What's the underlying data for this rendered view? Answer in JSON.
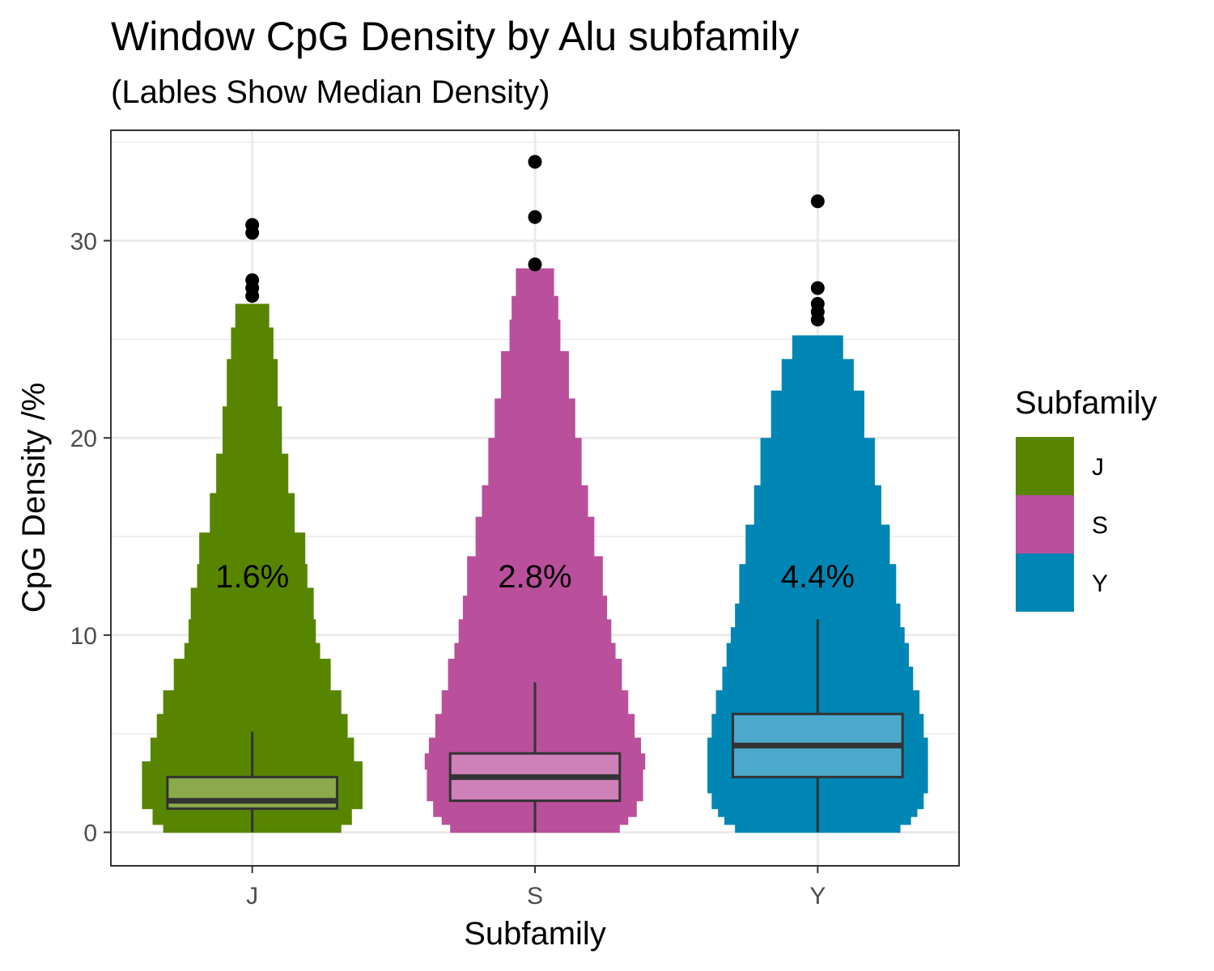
{
  "chart_data": {
    "type": "violin",
    "title": "Window CpG Density by Alu subfamily",
    "subtitle": "(Lables Show Median Density)",
    "xlabel": "Subfamily",
    "ylabel": "CpG Density /%",
    "categories": [
      "J",
      "S",
      "Y"
    ],
    "y_ticks": [
      0,
      10,
      20,
      30
    ],
    "ylim": [
      -1.7,
      35.6
    ],
    "label_y": 13,
    "legend": {
      "title": "Subfamily",
      "placement": "right",
      "items": [
        "J",
        "S",
        "Y"
      ]
    },
    "colors": {
      "J": "#578500",
      "S": "#ba4f9b",
      "Y": "#0086b4"
    },
    "box_fill_colors": {
      "J": "#8aaa4c",
      "S": "#ce80b9",
      "Y": "#4ca9cb"
    },
    "series": [
      {
        "name": "J",
        "median_label": "1.6%",
        "box": {
          "whisker_low": 0,
          "q1": 1.2,
          "median": 1.6,
          "q3": 2.8,
          "whisker_high": 5.1
        },
        "outliers": [
          27.2,
          27.6,
          28.0,
          30.4,
          30.8
        ],
        "violin_max": 26.8,
        "violin_profile": [
          [
            0,
            0.42
          ],
          [
            0.4,
            0.47
          ],
          [
            1.2,
            0.52
          ],
          [
            2.8,
            0.52
          ],
          [
            3.6,
            0.48
          ],
          [
            4.8,
            0.45
          ],
          [
            6.0,
            0.42
          ],
          [
            7.2,
            0.37
          ],
          [
            8.8,
            0.32
          ],
          [
            9.6,
            0.3
          ],
          [
            10.8,
            0.29
          ],
          [
            12.4,
            0.26
          ],
          [
            13.6,
            0.25
          ],
          [
            15.2,
            0.2
          ],
          [
            17.2,
            0.17
          ],
          [
            19.2,
            0.14
          ],
          [
            21.6,
            0.12
          ],
          [
            24.0,
            0.1
          ],
          [
            25.6,
            0.08
          ],
          [
            26.8,
            0.08
          ]
        ]
      },
      {
        "name": "S",
        "median_label": "2.8%",
        "box": {
          "whisker_low": 0,
          "q1": 1.6,
          "median": 2.8,
          "q3": 4.0,
          "whisker_high": 7.6
        },
        "outliers": [
          28.8,
          31.2,
          34.0
        ],
        "violin_max": 28.6,
        "violin_profile": [
          [
            0,
            0.4
          ],
          [
            0.4,
            0.44
          ],
          [
            0.8,
            0.48
          ],
          [
            1.6,
            0.51
          ],
          [
            3.2,
            0.52
          ],
          [
            4.0,
            0.5
          ],
          [
            4.8,
            0.47
          ],
          [
            6.0,
            0.44
          ],
          [
            7.2,
            0.41
          ],
          [
            8.8,
            0.38
          ],
          [
            9.6,
            0.36
          ],
          [
            10.8,
            0.34
          ],
          [
            12.0,
            0.32
          ],
          [
            14.0,
            0.28
          ],
          [
            16.0,
            0.25
          ],
          [
            17.6,
            0.22
          ],
          [
            20.0,
            0.19
          ],
          [
            22.0,
            0.16
          ],
          [
            24.4,
            0.12
          ],
          [
            26.0,
            0.11
          ],
          [
            27.2,
            0.09
          ],
          [
            28.6,
            0.09
          ]
        ]
      },
      {
        "name": "Y",
        "median_label": "4.4%",
        "box": {
          "whisker_low": 0,
          "q1": 2.8,
          "median": 4.4,
          "q3": 6.0,
          "whisker_high": 10.8
        },
        "outliers": [
          26.0,
          26.4,
          26.8,
          27.6,
          32.0
        ],
        "violin_max": 25.2,
        "violin_profile": [
          [
            0,
            0.39
          ],
          [
            0.4,
            0.44
          ],
          [
            0.8,
            0.47
          ],
          [
            1.2,
            0.5
          ],
          [
            2.0,
            0.52
          ],
          [
            2.8,
            0.52
          ],
          [
            4.8,
            0.5
          ],
          [
            6.0,
            0.48
          ],
          [
            7.2,
            0.45
          ],
          [
            8.4,
            0.43
          ],
          [
            9.6,
            0.41
          ],
          [
            10.4,
            0.39
          ],
          [
            11.6,
            0.37
          ],
          [
            13.6,
            0.34
          ],
          [
            15.6,
            0.3
          ],
          [
            17.6,
            0.27
          ],
          [
            20.0,
            0.22
          ],
          [
            22.4,
            0.17
          ],
          [
            24.0,
            0.12
          ],
          [
            25.2,
            0.11
          ]
        ]
      }
    ]
  }
}
